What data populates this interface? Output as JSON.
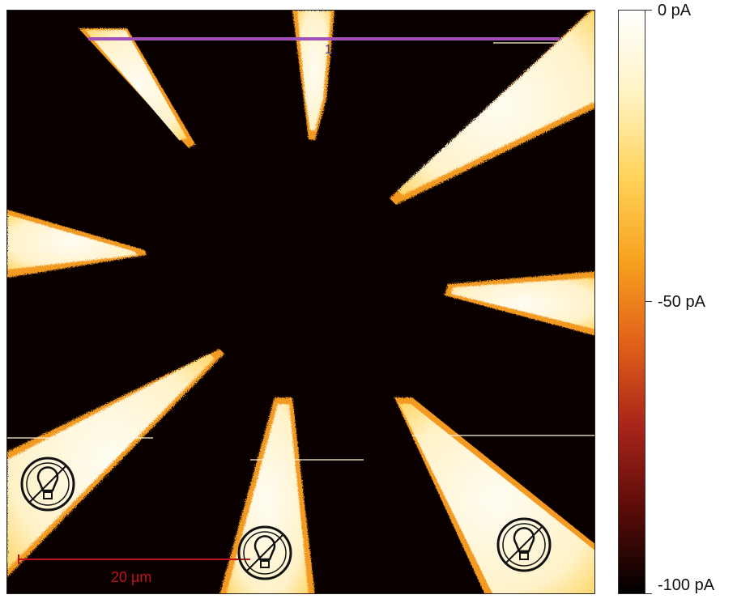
{
  "image": {
    "description_colors": {
      "background_dark": "#0a0000",
      "electrode_bright": "#fff6d6",
      "electrode_edge": "#f5a623",
      "profile_line": "#a24fb8",
      "scale_bar": "#c0141c"
    },
    "profile_line_label": "1",
    "scale_bar_label": "20 µm",
    "icons": [
      "light-bulb-off-icon",
      "light-bulb-off-icon",
      "light-bulb-off-icon"
    ]
  },
  "colorbar": {
    "top_label": "0 pA",
    "middle_label": "-50 pA",
    "bottom_label": "-100 pA",
    "colormap": [
      "#ffffff",
      "#fff3c4",
      "#ffd35a",
      "#f7a21f",
      "#e1601a",
      "#a8241a",
      "#5a0c08",
      "#000000"
    ]
  }
}
